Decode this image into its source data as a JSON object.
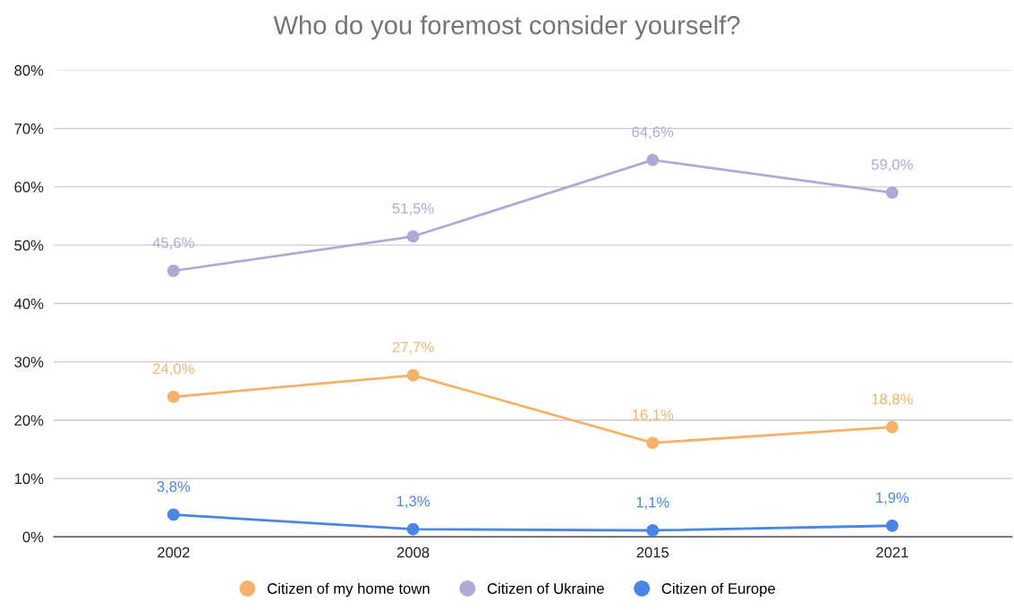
{
  "chart_data": {
    "type": "line",
    "title": "Who do you foremost consider yourself?",
    "categories": [
      "2002",
      "2008",
      "2015",
      "2021"
    ],
    "series": [
      {
        "name": "Citizen of my home town",
        "color": "#f6b26b",
        "values": [
          24.0,
          27.7,
          16.1,
          18.8
        ],
        "value_labels": [
          "24,0%",
          "27,7%",
          "16,1%",
          "18,8%"
        ]
      },
      {
        "name": "Citizen of Ukraine",
        "color": "#b4a7d6",
        "values": [
          45.6,
          51.5,
          64.6,
          59.0
        ],
        "value_labels": [
          "45,6%",
          "51,5%",
          "64,6%",
          "59,0%"
        ]
      },
      {
        "name": "Citizen of Europe",
        "color": "#4a86e8",
        "values": [
          3.8,
          1.3,
          1.1,
          1.9
        ],
        "value_labels": [
          "3,8%",
          "1,3%",
          "1,1%",
          "1,9%"
        ]
      }
    ],
    "ylim": [
      0,
      80
    ],
    "yticks": [
      {
        "value": 0,
        "label": "0%"
      },
      {
        "value": 10,
        "label": "10%"
      },
      {
        "value": 20,
        "label": "20%"
      },
      {
        "value": 30,
        "label": "30%"
      },
      {
        "value": 40,
        "label": "40%"
      },
      {
        "value": 50,
        "label": "50%"
      },
      {
        "value": 60,
        "label": "60%"
      },
      {
        "value": 70,
        "label": "70%"
      },
      {
        "value": 80,
        "label": "80%"
      }
    ],
    "grid": "y",
    "legend": "bottom",
    "marker": "circle",
    "line_style": "solid"
  }
}
